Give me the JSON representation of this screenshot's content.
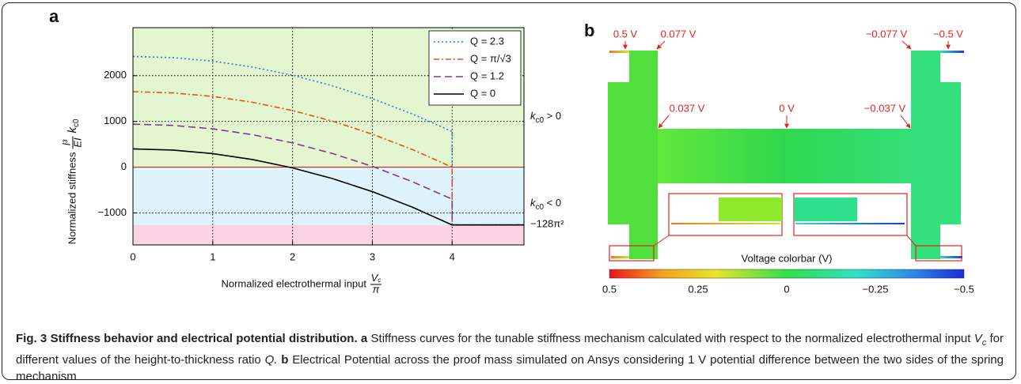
{
  "chart_data": {
    "type": "line",
    "panel": "a",
    "ylabel": "Normalized stiffness",
    "ylabel_fraction": {
      "num": "l³",
      "den": "EI"
    },
    "ylabel_symbol": {
      "base": "k",
      "sub": "c0"
    },
    "xlabel": "Normalized electrothermal input",
    "xlabel_fraction": {
      "num": "V",
      "num_sub": "c",
      "den": "π"
    },
    "xlim": [
      0,
      4.9
    ],
    "ylim": [
      -1700,
      3050
    ],
    "xticks": [
      0,
      1,
      2,
      3,
      4
    ],
    "yticks": [
      {
        "value": -1000,
        "label": "−1000"
      },
      0,
      1000,
      2000
    ],
    "grid": true,
    "legend": "top-right",
    "regions": [
      {
        "from": 0,
        "to": 3050,
        "color": "#e3f6cf"
      },
      {
        "from": -1263,
        "to": 0,
        "color": "#def3fb"
      },
      {
        "from": -1700,
        "to": -1263,
        "color": "#fbd3e3"
      }
    ],
    "zero_line_color": "#e2231a",
    "annotations": [
      {
        "base": "k",
        "sub": "c0",
        "rest": " > 0",
        "y": 1100
      },
      {
        "base": "k",
        "sub": "c0",
        "rest": " < 0",
        "y": -800
      },
      {
        "text": "−128π²",
        "y": -1263
      }
    ],
    "series": [
      {
        "name": "Q = 2.3",
        "color": "#2a7bd5",
        "dash": "2,3",
        "x": [
          0,
          0.5,
          1,
          1.5,
          2,
          2.5,
          3,
          3.5,
          4,
          4,
          4.9
        ],
        "values": [
          2420,
          2394,
          2318,
          2189,
          2010,
          1779,
          1498,
          1164,
          780,
          -1263,
          -1263
        ]
      },
      {
        "name": "Q = π/√3",
        "color": "#e2531a",
        "dash": "7,3,2,3",
        "x": [
          0,
          0.5,
          1,
          1.5,
          2,
          2.5,
          3,
          3.5,
          4,
          4,
          4.9
        ],
        "values": [
          1650,
          1624,
          1547,
          1418,
          1238,
          1006,
          722,
          387,
          0,
          -1263,
          -1263
        ]
      },
      {
        "name": "Q = 1.2",
        "color": "#7b3a96",
        "dash": "9,5",
        "x": [
          0,
          0.5,
          1,
          1.5,
          2,
          2.5,
          3,
          3.5,
          4,
          4,
          4.9
        ],
        "values": [
          940,
          914,
          838,
          709,
          530,
          299,
          18,
          -316,
          -700,
          -1263,
          -1263
        ]
      },
      {
        "name": "Q = 0",
        "color": "#000000",
        "dash": "",
        "x": [
          0,
          0.5,
          1,
          1.5,
          2,
          2.5,
          3,
          3.5,
          4,
          4.9
        ],
        "values": [
          400,
          374,
          296,
          166,
          -16,
          -249,
          -535,
          -873,
          -1263,
          -1263
        ]
      }
    ]
  },
  "panel_b": {
    "letter": "b",
    "labels": [
      "0.5 V",
      "0.077 V",
      "−0.077 V",
      "−0.5 V",
      "0.037 V",
      "0 V",
      "−0.037 V"
    ],
    "colorbar_title": "Voltage colorbar (V)",
    "colorbar_ticks": [
      "0.5",
      "0.25",
      "0",
      "−0.25",
      "−0.5"
    ]
  },
  "caption": {
    "label": "Fig. 3",
    "title": "Stiffness behavior and electrical potential distribution.",
    "a": {
      "letter": "a",
      "segments": [
        {
          "text": "Stiffness curves for the tunable stiffness mechanism calculated with respect to the normalized electrothermal input ",
          "style": "normal"
        },
        {
          "text": "V",
          "style": "italic"
        },
        {
          "text": "c",
          "style": "sub"
        },
        {
          "text": " for different values of the height-to-thickness ratio ",
          "style": "normal"
        },
        {
          "text": "Q.",
          "style": "italic"
        }
      ]
    },
    "b": {
      "letter": "b",
      "segments": [
        {
          "text": "Electrical Potential across the proof mass simulated on Ansys considering 1 V potential difference between the two sides of the spring mechanism",
          "style": "normal"
        }
      ]
    }
  }
}
